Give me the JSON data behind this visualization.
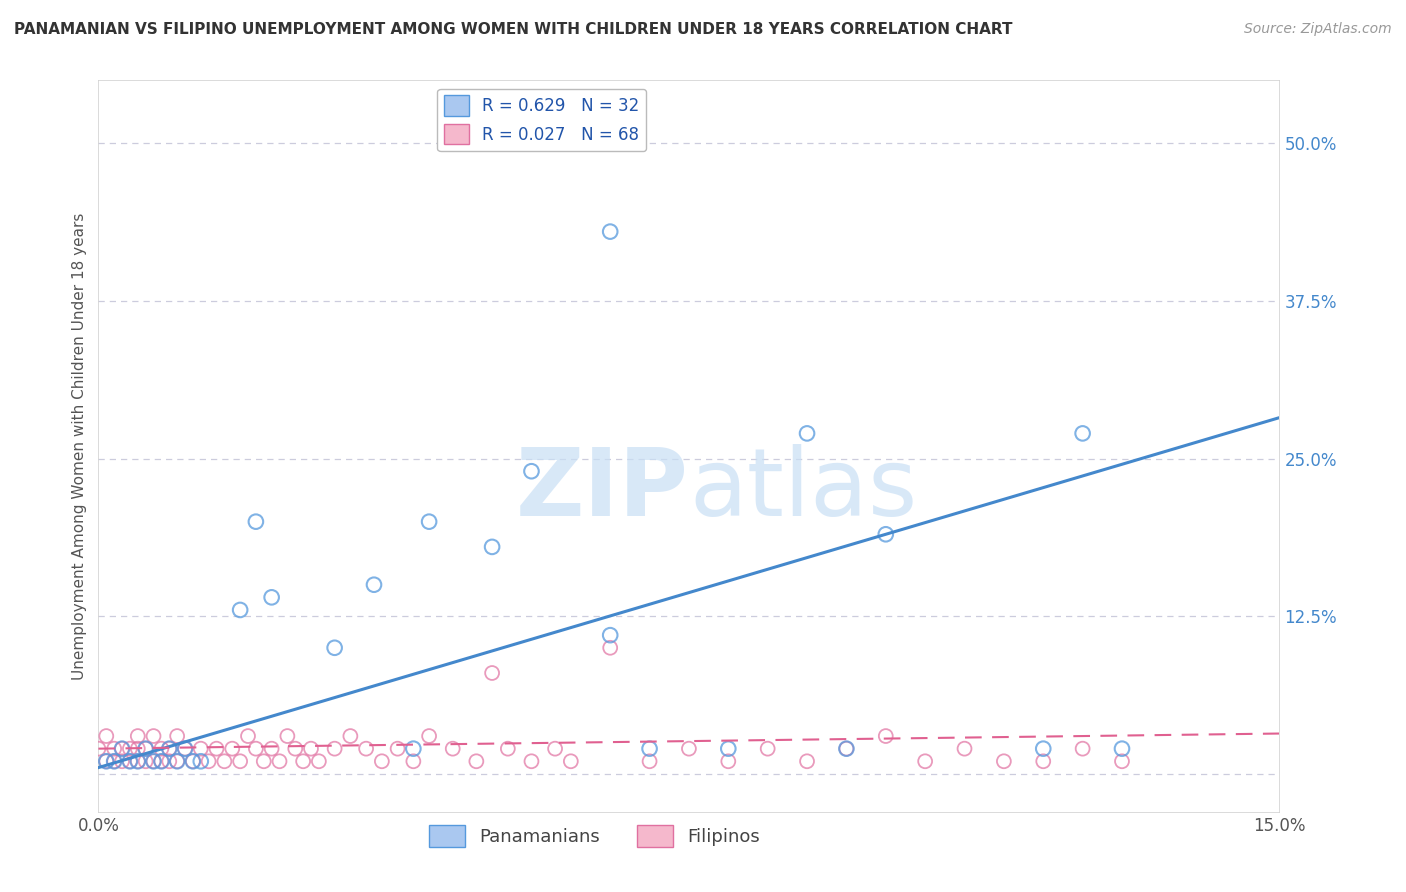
{
  "title": "PANAMANIAN VS FILIPINO UNEMPLOYMENT AMONG WOMEN WITH CHILDREN UNDER 18 YEARS CORRELATION CHART",
  "source": "Source: ZipAtlas.com",
  "ylabel": "Unemployment Among Women with Children Under 18 years",
  "xlim": [
    0.0,
    0.15
  ],
  "ylim": [
    -0.03,
    0.55
  ],
  "x_ticks": [
    0.0,
    0.05,
    0.1,
    0.15
  ],
  "x_tick_labels": [
    "0.0%",
    "",
    "",
    "15.0%"
  ],
  "y_ticks_right": [
    0.0,
    0.125,
    0.25,
    0.375,
    0.5
  ],
  "y_tick_labels_right": [
    "",
    "12.5%",
    "25.0%",
    "37.5%",
    "50.0%"
  ],
  "legend_label_pan": "R = 0.629   N = 32",
  "legend_label_fil": "R = 0.027   N = 68",
  "panamanian_color_face": "#aac8f0",
  "panamanian_color_edge": "#5599dd",
  "filipino_color_face": "#f5b8cc",
  "filipino_color_edge": "#e070a0",
  "panamanian_line_color": "#4488cc",
  "filipino_line_color": "#e06090",
  "watermark_color": "#ddeeff",
  "background_color": "#ffffff",
  "grid_color": "#ccccdd",
  "pan_x": [
    0.001,
    0.002,
    0.003,
    0.004,
    0.005,
    0.006,
    0.007,
    0.008,
    0.009,
    0.01,
    0.011,
    0.012,
    0.013,
    0.018,
    0.02,
    0.022,
    0.03,
    0.035,
    0.04,
    0.042,
    0.05,
    0.055,
    0.065,
    0.07,
    0.08,
    0.09,
    0.095,
    0.1,
    0.12,
    0.125,
    0.13,
    0.065
  ],
  "pan_y": [
    0.01,
    0.01,
    0.02,
    0.01,
    0.01,
    0.02,
    0.01,
    0.01,
    0.02,
    0.01,
    0.02,
    0.01,
    0.01,
    0.13,
    0.2,
    0.14,
    0.1,
    0.15,
    0.02,
    0.2,
    0.18,
    0.24,
    0.11,
    0.02,
    0.02,
    0.27,
    0.02,
    0.19,
    0.02,
    0.27,
    0.02,
    0.43
  ],
  "fil_x": [
    0.0,
    0.001,
    0.001,
    0.002,
    0.002,
    0.003,
    0.003,
    0.004,
    0.004,
    0.005,
    0.005,
    0.005,
    0.006,
    0.006,
    0.007,
    0.007,
    0.008,
    0.008,
    0.009,
    0.009,
    0.01,
    0.01,
    0.011,
    0.012,
    0.013,
    0.014,
    0.015,
    0.016,
    0.017,
    0.018,
    0.019,
    0.02,
    0.021,
    0.022,
    0.023,
    0.024,
    0.025,
    0.026,
    0.027,
    0.028,
    0.03,
    0.032,
    0.034,
    0.036,
    0.038,
    0.04,
    0.042,
    0.045,
    0.048,
    0.05,
    0.052,
    0.055,
    0.058,
    0.06,
    0.065,
    0.07,
    0.075,
    0.08,
    0.085,
    0.09,
    0.095,
    0.1,
    0.105,
    0.11,
    0.115,
    0.12,
    0.125,
    0.13
  ],
  "fil_y": [
    0.02,
    0.01,
    0.03,
    0.01,
    0.02,
    0.01,
    0.02,
    0.01,
    0.02,
    0.01,
    0.02,
    0.03,
    0.01,
    0.02,
    0.01,
    0.03,
    0.01,
    0.02,
    0.01,
    0.02,
    0.01,
    0.03,
    0.02,
    0.01,
    0.02,
    0.01,
    0.02,
    0.01,
    0.02,
    0.01,
    0.03,
    0.02,
    0.01,
    0.02,
    0.01,
    0.03,
    0.02,
    0.01,
    0.02,
    0.01,
    0.02,
    0.03,
    0.02,
    0.01,
    0.02,
    0.01,
    0.03,
    0.02,
    0.01,
    0.08,
    0.02,
    0.01,
    0.02,
    0.01,
    0.1,
    0.01,
    0.02,
    0.01,
    0.02,
    0.01,
    0.02,
    0.03,
    0.01,
    0.02,
    0.01,
    0.01,
    0.02,
    0.01
  ]
}
